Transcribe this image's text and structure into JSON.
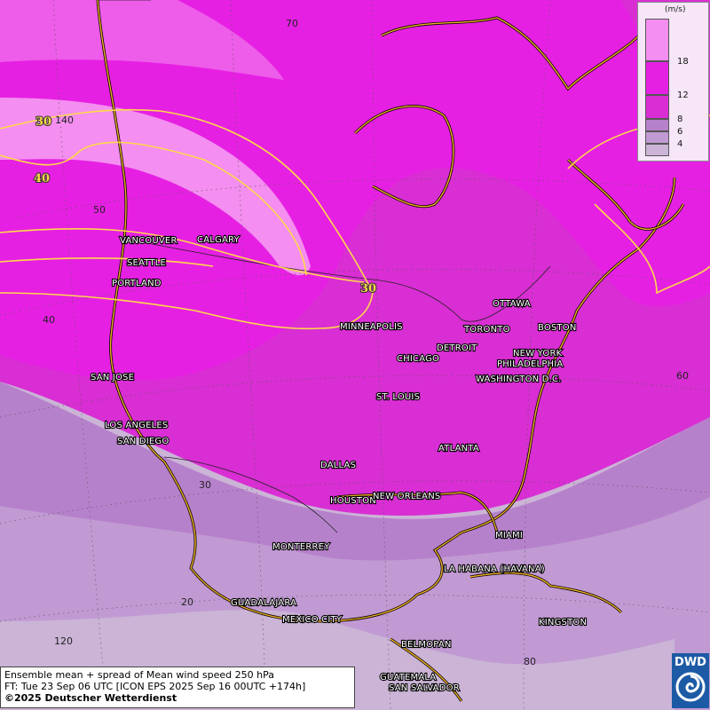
{
  "legend": {
    "unit": "(m/s)",
    "ticks": [
      "18",
      "12",
      "8",
      "6",
      "4"
    ],
    "colors": {
      "lt4": "#cbb4d6",
      "c4_6": "#c19ad3",
      "c6_8": "#b681cb",
      "c8_12": "#d92ed4",
      "c12_18": "#e620e3",
      "gt18": "#f48ef0"
    }
  },
  "grid_labels": {
    "lat": [
      "70",
      "50",
      "40",
      "30",
      "20"
    ],
    "lon": [
      "140",
      "120",
      "60",
      "80"
    ]
  },
  "contour_labels": [
    "30",
    "40",
    "30"
  ],
  "cities": {
    "vancouver": "VANCOUVER",
    "calgary": "CALGARY",
    "seattle": "SEATTLE",
    "portland": "PORTLAND",
    "minneapolis": "MINNEAPOLIS",
    "ottawa": "OTTAWA",
    "toronto": "TORONTO",
    "boston": "BOSTON",
    "detroit": "DETROIT",
    "chicago": "CHICAGO",
    "new_york": "NEW YORK",
    "philadelphia": "PHILADELPHIA",
    "washington": "WASHINGTON D.C.",
    "san_jose": "SAN JOSE",
    "st_louis": "ST. LOUIS",
    "los_angeles": "LOS ANGELES",
    "san_diego": "SAN DIEGO",
    "atlanta": "ATLANTA",
    "dallas": "DALLAS",
    "houston": "HOUSTON",
    "new_orleans": "NEW ORLEANS",
    "miami": "MIAMI",
    "monterrey": "MONTERREY",
    "la_habana": "LA HABANA (HAVANA)",
    "guadalajara": "GUADALAJARA",
    "mexico_city": "MEXICO CITY",
    "kingston": "KINGSTON",
    "belmopan": "BELMOPAN",
    "guatemala": "GUATEMALA",
    "san_salvador": "SAN SALVADOR"
  },
  "info": {
    "line1": "Ensemble mean + spread of Mean wind speed 250 hPa",
    "line2": "FT: Tue 23 Sep 06 UTC [ICON EPS 2025 Sep 16 00UTC +174h]",
    "line3": "©2025 Deutscher Wetterdienst"
  },
  "logo": {
    "text": "DWD"
  }
}
